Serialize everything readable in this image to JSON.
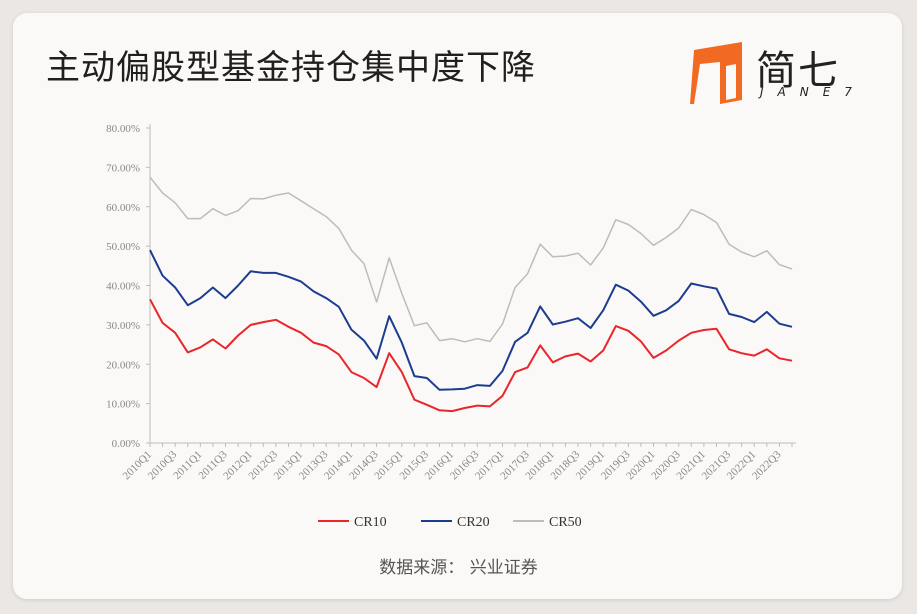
{
  "title": "主动偏股型基金持仓集中度下降",
  "logo": {
    "text_cn": "简七",
    "text_en": "JANE7",
    "accent_color": "#f26a21"
  },
  "source": "数据来源：  兴业证券",
  "chart_data": {
    "type": "line",
    "ylim": [
      0,
      80
    ],
    "y_ticks": [
      "0.00%",
      "10.00%",
      "20.00%",
      "30.00%",
      "40.00%",
      "50.00%",
      "60.00%",
      "70.00%",
      "80.00%"
    ],
    "x_ticks": [
      "2010Q1",
      "2010Q3",
      "2011Q1",
      "2011Q3",
      "2012Q1",
      "2012Q3",
      "2013Q1",
      "2013Q3",
      "2014Q1",
      "2014Q3",
      "2015Q1",
      "2015Q3",
      "2016Q1",
      "2016Q3",
      "2017Q1",
      "2017Q3",
      "2018Q1",
      "2018Q3",
      "2019Q1",
      "2019Q3",
      "2020Q1",
      "2020Q3",
      "2021Q1",
      "2021Q3",
      "2022Q1",
      "2022Q3"
    ],
    "categories": [
      "2010Q1",
      "2010Q2",
      "2010Q3",
      "2010Q4",
      "2011Q1",
      "2011Q2",
      "2011Q3",
      "2011Q4",
      "2012Q1",
      "2012Q2",
      "2012Q3",
      "2012Q4",
      "2013Q1",
      "2013Q2",
      "2013Q3",
      "2013Q4",
      "2014Q1",
      "2014Q2",
      "2014Q3",
      "2014Q4",
      "2015Q1",
      "2015Q2",
      "2015Q3",
      "2015Q4",
      "2016Q1",
      "2016Q2",
      "2016Q3",
      "2016Q4",
      "2017Q1",
      "2017Q2",
      "2017Q3",
      "2017Q4",
      "2018Q1",
      "2018Q2",
      "2018Q3",
      "2018Q4",
      "2019Q1",
      "2019Q2",
      "2019Q3",
      "2019Q4",
      "2020Q1",
      "2020Q2",
      "2020Q3",
      "2020Q4",
      "2021Q1",
      "2021Q2",
      "2021Q3",
      "2021Q4",
      "2022Q1",
      "2022Q2",
      "2022Q3",
      "2022Q4"
    ],
    "series": [
      {
        "name": "CR10",
        "color": "#e8262b",
        "values": [
          36.5,
          30.5,
          28,
          23,
          24.3,
          26.3,
          24,
          27.3,
          30,
          30.7,
          31.3,
          29.5,
          28,
          25.5,
          24.6,
          22.5,
          18,
          16.5,
          14.2,
          22.8,
          18,
          11,
          9.7,
          8.3,
          8.1,
          8.9,
          9.5,
          9.3,
          12,
          18,
          19.2,
          24.8,
          20.5,
          22,
          22.7,
          20.7,
          23.5,
          29.7,
          28.5,
          25.8,
          21.6,
          23.5,
          26,
          28,
          28.7,
          29,
          23.8,
          22.8,
          22.2,
          23.8,
          21.5,
          20.9
        ]
      },
      {
        "name": "CR20",
        "color": "#1c3d8f",
        "values": [
          49,
          42.5,
          39.5,
          35,
          36.8,
          39.5,
          36.8,
          40,
          43.6,
          43.2,
          43.2,
          42.2,
          41,
          38.5,
          36.8,
          34.6,
          28.8,
          26,
          21.4,
          32.2,
          25.5,
          17,
          16.5,
          13.5,
          13.6,
          13.8,
          14.7,
          14.5,
          18.3,
          25.7,
          28,
          34.7,
          30.1,
          30.8,
          31.7,
          29.2,
          33.7,
          40.2,
          38.7,
          35.9,
          32.3,
          33.7,
          36.1,
          40.5,
          39.8,
          39.2,
          32.8,
          32,
          30.7,
          33.3,
          30.3,
          29.5
        ]
      },
      {
        "name": "CR50",
        "color": "#bcbcbc",
        "values": [
          67.5,
          63.5,
          61,
          57,
          57,
          59.5,
          57.8,
          59,
          62.1,
          62,
          62.9,
          63.5,
          61.5,
          59.5,
          57.5,
          54.5,
          49,
          45.5,
          35.8,
          47,
          38,
          29.8,
          30.5,
          26,
          26.5,
          25.7,
          26.5,
          25.8,
          30.2,
          39.5,
          43,
          50.5,
          47.3,
          47.5,
          48.2,
          45.2,
          49.5,
          56.7,
          55.5,
          53.2,
          50.2,
          52.2,
          54.6,
          59.3,
          58,
          56,
          50.5,
          48.5,
          47.3,
          48.8,
          45.3,
          44.2
        ]
      }
    ]
  }
}
